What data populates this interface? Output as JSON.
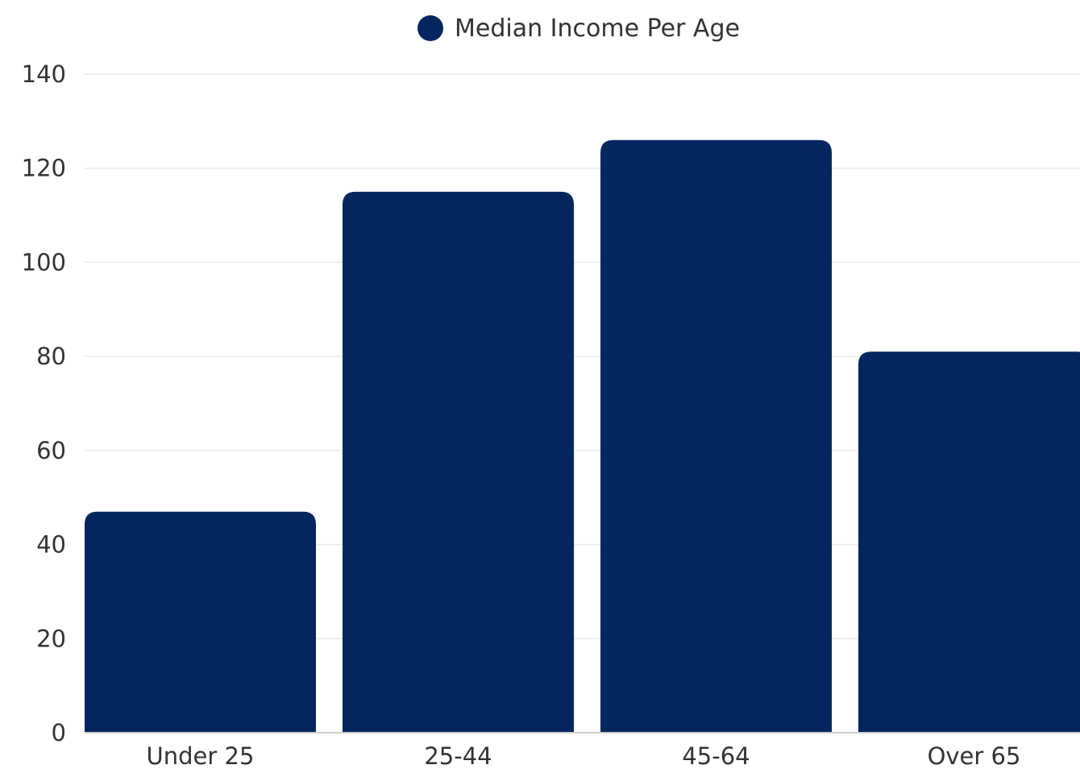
{
  "chart_data": {
    "type": "bar",
    "title": "",
    "xlabel": "",
    "ylabel": "",
    "categories": [
      "Under 25",
      "25-44",
      "45-64",
      "Over 65"
    ],
    "series": [
      {
        "name": "Median Income Per Age",
        "values": [
          47,
          115,
          126,
          81
        ],
        "color": "#03265e"
      }
    ],
    "ylim": [
      0,
      140
    ],
    "yticks": [
      "0",
      "20",
      "40",
      "60",
      "80",
      "100",
      "120",
      "140"
    ],
    "grid": true,
    "legend_position": "top-center"
  }
}
